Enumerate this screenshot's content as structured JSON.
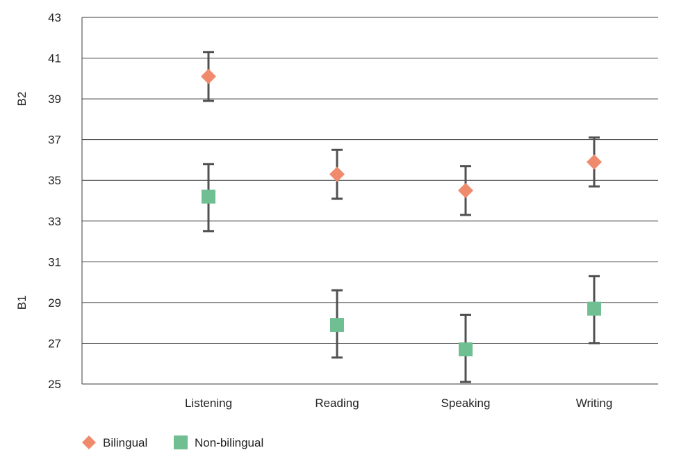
{
  "chart_data": {
    "type": "scatter",
    "title": "",
    "xlabel": "",
    "ylabel": "",
    "categories": [
      "Listening",
      "Reading",
      "Speaking",
      "Writing"
    ],
    "ylim": [
      25,
      43
    ],
    "yticks": [
      25,
      27,
      29,
      31,
      33,
      35,
      37,
      39,
      41,
      43
    ],
    "grid": true,
    "band_labels": [
      {
        "label": "B2",
        "y": 39
      },
      {
        "label": "B1",
        "y": 29
      }
    ],
    "legend_position": "bottom-left",
    "series": [
      {
        "name": "Bilingual",
        "marker": "diamond",
        "color": "#F08A6C",
        "points": [
          {
            "category": "Listening",
            "value": 40.1,
            "low": 38.9,
            "high": 41.3
          },
          {
            "category": "Reading",
            "value": 35.3,
            "low": 34.1,
            "high": 36.5
          },
          {
            "category": "Speaking",
            "value": 34.5,
            "low": 33.3,
            "high": 35.7
          },
          {
            "category": "Writing",
            "value": 35.9,
            "low": 34.7,
            "high": 37.1
          }
        ]
      },
      {
        "name": "Non-bilingual",
        "marker": "square",
        "color": "#6FBF93",
        "points": [
          {
            "category": "Listening",
            "value": 34.2,
            "low": 32.5,
            "high": 35.8
          },
          {
            "category": "Reading",
            "value": 27.9,
            "low": 26.3,
            "high": 29.6
          },
          {
            "category": "Speaking",
            "value": 26.7,
            "low": 25.1,
            "high": 28.4
          },
          {
            "category": "Writing",
            "value": 28.7,
            "low": 27.0,
            "high": 30.3
          }
        ]
      }
    ],
    "errorbar_color": "#505050",
    "grid_color": "#3a3a3a"
  }
}
